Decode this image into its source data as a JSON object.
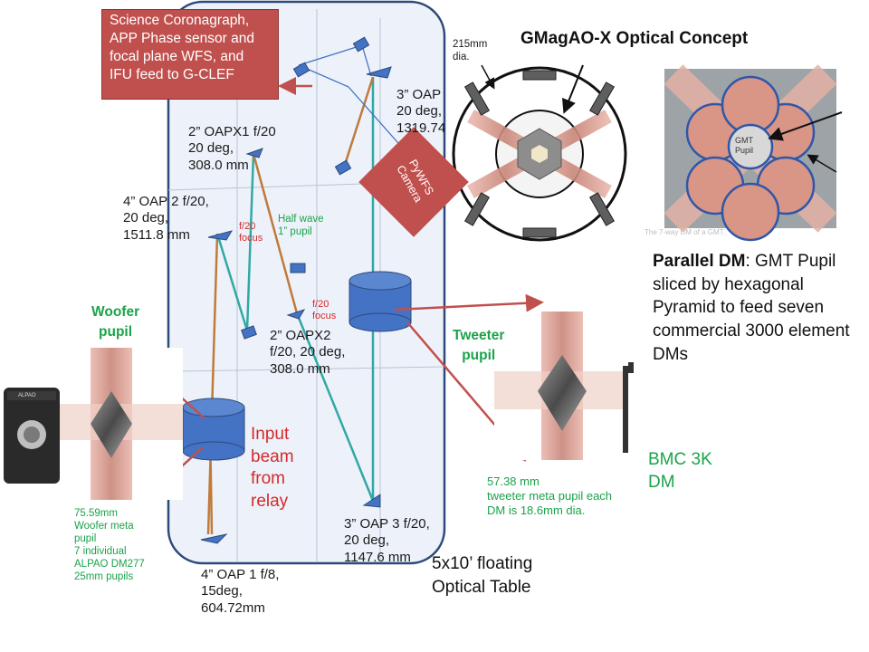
{
  "title": "GMagAO-X Optical Concept",
  "science_box": "Science Coronagraph,\nAPP Phase sensor and\nfocal plane WFS, and\nIFU feed to G-CLEF",
  "pywfs": "PyWFS\nCamera",
  "dia_label": "215mm\ndia.",
  "pupil_label": "GMT\nPupil",
  "caption_faint": "The 7-way DM of a GMT",
  "parallel_dm": {
    "bold": "Parallel DM",
    "rest": ": GMT Pupil sliced by hexagonal Pyramid to feed seven commercial 3000 element DMs"
  },
  "labels": {
    "oap3_top": "3” OAP\n20 deg,\n1319.74",
    "oapx1": "2” OAPX1  f/20\n20 deg,\n308.0 mm",
    "oap2": "4” OAP 2 f/20,\n20 deg,\n1511.8 mm",
    "oapx2": "2” OAPX2\nf/20, 20 deg,\n308.0 mm",
    "oap3_bot": "3” OAP 3 f/20,\n20 deg,\n1147.6 mm",
    "oap1": "4” OAP 1 f/8,\n15deg,\n604.72mm",
    "f20_focus_1": "f/20\nfocus",
    "f20_focus_2": "f/20\nfocus",
    "half_wave": "Half wave\n1” pupil",
    "input_beam": "Input\nbeam\nfrom\nrelay",
    "table": "5x10’ floating\nOptical Table",
    "woofer_pupil": "Woofer\npupil",
    "tweeter_pupil": "Tweeter\npupil",
    "woofer_meta": "75.59mm\nWoofer meta\npupil\n7 individual\nALPAO DM277\n25mm  pupils",
    "tweeter_meta": "57.38 mm\ntweeter meta pupil each\nDM is 18.6mm dia.",
    "bmc": "BMC 3K\nDM",
    "alpao": "ALPAO"
  },
  "colors": {
    "red_box": "#c0504d",
    "mirror_blue": "#4472c4",
    "beam_teal": "#31a8a5",
    "beam_orange": "#c07a3a",
    "arrow_red": "#c0504d",
    "green_text": "#1aa34a"
  }
}
